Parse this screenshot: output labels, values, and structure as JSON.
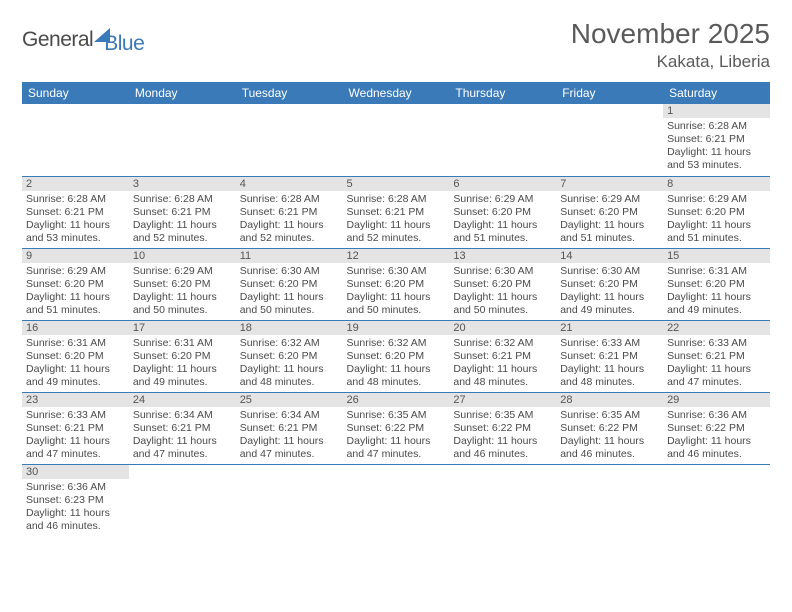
{
  "logo": {
    "general": "General",
    "blue": "Blue"
  },
  "title": "November 2025",
  "location": "Kakata, Liberia",
  "header_bg": "#3a7ab8",
  "daynum_bg": "#e4e4e4",
  "rule_color": "#3a7ab8",
  "text_color": "#4a4a4a",
  "daynames": [
    "Sunday",
    "Monday",
    "Tuesday",
    "Wednesday",
    "Thursday",
    "Friday",
    "Saturday"
  ],
  "weeks": [
    [
      {
        "n": "",
        "sr": "",
        "ss": "",
        "dl": ""
      },
      {
        "n": "",
        "sr": "",
        "ss": "",
        "dl": ""
      },
      {
        "n": "",
        "sr": "",
        "ss": "",
        "dl": ""
      },
      {
        "n": "",
        "sr": "",
        "ss": "",
        "dl": ""
      },
      {
        "n": "",
        "sr": "",
        "ss": "",
        "dl": ""
      },
      {
        "n": "",
        "sr": "",
        "ss": "",
        "dl": ""
      },
      {
        "n": "1",
        "sr": "Sunrise: 6:28 AM",
        "ss": "Sunset: 6:21 PM",
        "dl": "Daylight: 11 hours and 53 minutes."
      }
    ],
    [
      {
        "n": "2",
        "sr": "Sunrise: 6:28 AM",
        "ss": "Sunset: 6:21 PM",
        "dl": "Daylight: 11 hours and 53 minutes."
      },
      {
        "n": "3",
        "sr": "Sunrise: 6:28 AM",
        "ss": "Sunset: 6:21 PM",
        "dl": "Daylight: 11 hours and 52 minutes."
      },
      {
        "n": "4",
        "sr": "Sunrise: 6:28 AM",
        "ss": "Sunset: 6:21 PM",
        "dl": "Daylight: 11 hours and 52 minutes."
      },
      {
        "n": "5",
        "sr": "Sunrise: 6:28 AM",
        "ss": "Sunset: 6:21 PM",
        "dl": "Daylight: 11 hours and 52 minutes."
      },
      {
        "n": "6",
        "sr": "Sunrise: 6:29 AM",
        "ss": "Sunset: 6:20 PM",
        "dl": "Daylight: 11 hours and 51 minutes."
      },
      {
        "n": "7",
        "sr": "Sunrise: 6:29 AM",
        "ss": "Sunset: 6:20 PM",
        "dl": "Daylight: 11 hours and 51 minutes."
      },
      {
        "n": "8",
        "sr": "Sunrise: 6:29 AM",
        "ss": "Sunset: 6:20 PM",
        "dl": "Daylight: 11 hours and 51 minutes."
      }
    ],
    [
      {
        "n": "9",
        "sr": "Sunrise: 6:29 AM",
        "ss": "Sunset: 6:20 PM",
        "dl": "Daylight: 11 hours and 51 minutes."
      },
      {
        "n": "10",
        "sr": "Sunrise: 6:29 AM",
        "ss": "Sunset: 6:20 PM",
        "dl": "Daylight: 11 hours and 50 minutes."
      },
      {
        "n": "11",
        "sr": "Sunrise: 6:30 AM",
        "ss": "Sunset: 6:20 PM",
        "dl": "Daylight: 11 hours and 50 minutes."
      },
      {
        "n": "12",
        "sr": "Sunrise: 6:30 AM",
        "ss": "Sunset: 6:20 PM",
        "dl": "Daylight: 11 hours and 50 minutes."
      },
      {
        "n": "13",
        "sr": "Sunrise: 6:30 AM",
        "ss": "Sunset: 6:20 PM",
        "dl": "Daylight: 11 hours and 50 minutes."
      },
      {
        "n": "14",
        "sr": "Sunrise: 6:30 AM",
        "ss": "Sunset: 6:20 PM",
        "dl": "Daylight: 11 hours and 49 minutes."
      },
      {
        "n": "15",
        "sr": "Sunrise: 6:31 AM",
        "ss": "Sunset: 6:20 PM",
        "dl": "Daylight: 11 hours and 49 minutes."
      }
    ],
    [
      {
        "n": "16",
        "sr": "Sunrise: 6:31 AM",
        "ss": "Sunset: 6:20 PM",
        "dl": "Daylight: 11 hours and 49 minutes."
      },
      {
        "n": "17",
        "sr": "Sunrise: 6:31 AM",
        "ss": "Sunset: 6:20 PM",
        "dl": "Daylight: 11 hours and 49 minutes."
      },
      {
        "n": "18",
        "sr": "Sunrise: 6:32 AM",
        "ss": "Sunset: 6:20 PM",
        "dl": "Daylight: 11 hours and 48 minutes."
      },
      {
        "n": "19",
        "sr": "Sunrise: 6:32 AM",
        "ss": "Sunset: 6:20 PM",
        "dl": "Daylight: 11 hours and 48 minutes."
      },
      {
        "n": "20",
        "sr": "Sunrise: 6:32 AM",
        "ss": "Sunset: 6:21 PM",
        "dl": "Daylight: 11 hours and 48 minutes."
      },
      {
        "n": "21",
        "sr": "Sunrise: 6:33 AM",
        "ss": "Sunset: 6:21 PM",
        "dl": "Daylight: 11 hours and 48 minutes."
      },
      {
        "n": "22",
        "sr": "Sunrise: 6:33 AM",
        "ss": "Sunset: 6:21 PM",
        "dl": "Daylight: 11 hours and 47 minutes."
      }
    ],
    [
      {
        "n": "23",
        "sr": "Sunrise: 6:33 AM",
        "ss": "Sunset: 6:21 PM",
        "dl": "Daylight: 11 hours and 47 minutes."
      },
      {
        "n": "24",
        "sr": "Sunrise: 6:34 AM",
        "ss": "Sunset: 6:21 PM",
        "dl": "Daylight: 11 hours and 47 minutes."
      },
      {
        "n": "25",
        "sr": "Sunrise: 6:34 AM",
        "ss": "Sunset: 6:21 PM",
        "dl": "Daylight: 11 hours and 47 minutes."
      },
      {
        "n": "26",
        "sr": "Sunrise: 6:35 AM",
        "ss": "Sunset: 6:22 PM",
        "dl": "Daylight: 11 hours and 47 minutes."
      },
      {
        "n": "27",
        "sr": "Sunrise: 6:35 AM",
        "ss": "Sunset: 6:22 PM",
        "dl": "Daylight: 11 hours and 46 minutes."
      },
      {
        "n": "28",
        "sr": "Sunrise: 6:35 AM",
        "ss": "Sunset: 6:22 PM",
        "dl": "Daylight: 11 hours and 46 minutes."
      },
      {
        "n": "29",
        "sr": "Sunrise: 6:36 AM",
        "ss": "Sunset: 6:22 PM",
        "dl": "Daylight: 11 hours and 46 minutes."
      }
    ],
    [
      {
        "n": "30",
        "sr": "Sunrise: 6:36 AM",
        "ss": "Sunset: 6:23 PM",
        "dl": "Daylight: 11 hours and 46 minutes."
      },
      {
        "n": "",
        "sr": "",
        "ss": "",
        "dl": ""
      },
      {
        "n": "",
        "sr": "",
        "ss": "",
        "dl": ""
      },
      {
        "n": "",
        "sr": "",
        "ss": "",
        "dl": ""
      },
      {
        "n": "",
        "sr": "",
        "ss": "",
        "dl": ""
      },
      {
        "n": "",
        "sr": "",
        "ss": "",
        "dl": ""
      },
      {
        "n": "",
        "sr": "",
        "ss": "",
        "dl": ""
      }
    ]
  ]
}
